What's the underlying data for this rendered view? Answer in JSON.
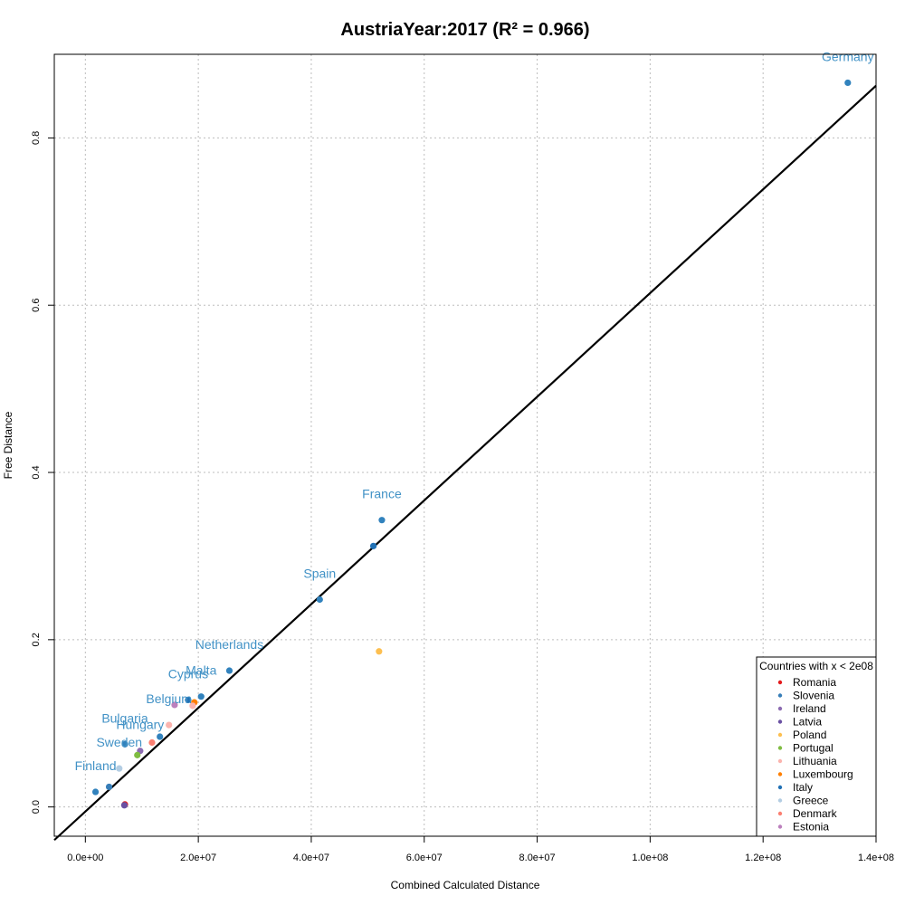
{
  "chart_data": {
    "type": "scatter",
    "title": "AustriaYear:2017 (R² = 0.966)",
    "xlabel": "Combined Calculated Distance",
    "ylabel": "Free Distance",
    "xlim": [
      -5500000,
      140000000
    ],
    "ylim": [
      -0.035,
      0.9
    ],
    "x_ticks": [
      0,
      20000000,
      40000000,
      60000000,
      80000000,
      100000000,
      120000000,
      140000000
    ],
    "x_tick_labels": [
      "0.0e+00",
      "2.0e+07",
      "4.0e+07",
      "6.0e+07",
      "8.0e+07",
      "1.0e+08",
      "1.2e+08",
      "1.4e+08"
    ],
    "y_ticks": [
      0.0,
      0.2,
      0.4,
      0.6,
      0.8
    ],
    "y_tick_labels": [
      "0.0",
      "0.2",
      "0.4",
      "0.6",
      "0.8"
    ],
    "grid": true,
    "regression_line": {
      "intercept": -0.0055,
      "slope": 6.2e-09,
      "color": "#000000"
    },
    "legend": {
      "title": "Countries with x < 2e08",
      "position": "bottom-right",
      "entries": [
        {
          "name": "Romania",
          "color": "#e41a1c"
        },
        {
          "name": "Slovenia",
          "color": "#377eb8"
        },
        {
          "name": "Ireland",
          "color": "#8c6bb1"
        },
        {
          "name": "Latvia",
          "color": "#6a51a3"
        },
        {
          "name": "Poland",
          "color": "#fdbf50"
        },
        {
          "name": "Portugal",
          "color": "#7fbc41"
        },
        {
          "name": "Lithuania",
          "color": "#fbb4ae"
        },
        {
          "name": "Luxembourg",
          "color": "#ff7f00"
        },
        {
          "name": "Italy",
          "color": "#2171b5"
        },
        {
          "name": "Greece",
          "color": "#b3cde3"
        },
        {
          "name": "Denmark",
          "color": "#fb8072"
        },
        {
          "name": "Estonia",
          "color": "#bc80bd"
        }
      ]
    },
    "points": [
      {
        "x": 135000000,
        "y": 0.866,
        "color": "#3182bd",
        "label": "Germany"
      },
      {
        "x": 52500000,
        "y": 0.343,
        "color": "#3182bd",
        "label": "France"
      },
      {
        "x": 51000000,
        "y": 0.312,
        "color": "#2171b5",
        "label": ""
      },
      {
        "x": 41500000,
        "y": 0.248,
        "color": "#3182bd",
        "label": "Spain"
      },
      {
        "x": 52000000,
        "y": 0.186,
        "color": "#fdbf50",
        "label": ""
      },
      {
        "x": 25500000,
        "y": 0.163,
        "color": "#3182bd",
        "label": "Netherlands"
      },
      {
        "x": 20500000,
        "y": 0.132,
        "color": "#3182bd",
        "label": "Malta"
      },
      {
        "x": 18200000,
        "y": 0.128,
        "color": "#2171b5",
        "label": "Cyprus"
      },
      {
        "x": 19300000,
        "y": 0.125,
        "color": "#ff7f00",
        "label": ""
      },
      {
        "x": 19000000,
        "y": 0.121,
        "color": "#fbb4ae",
        "label": ""
      },
      {
        "x": 15800000,
        "y": 0.122,
        "color": "#bc80bd",
        "label": ""
      },
      {
        "x": 14800000,
        "y": 0.098,
        "color": "#fbb4ae",
        "label": "Belgium"
      },
      {
        "x": 13200000,
        "y": 0.084,
        "color": "#3182bd",
        "label": ""
      },
      {
        "x": 11800000,
        "y": 0.077,
        "color": "#fb8072",
        "label": ""
      },
      {
        "x": 7000000,
        "y": 0.075,
        "color": "#3182bd",
        "label": "Bulgaria"
      },
      {
        "x": 9700000,
        "y": 0.067,
        "color": "#8c6bb1",
        "label": "Hungary"
      },
      {
        "x": 9200000,
        "y": 0.062,
        "color": "#7fbc41",
        "label": ""
      },
      {
        "x": 6000000,
        "y": 0.046,
        "color": "#b3cde3",
        "label": "Sweden"
      },
      {
        "x": 4200000,
        "y": 0.024,
        "color": "#377eb8",
        "label": ""
      },
      {
        "x": 1800000,
        "y": 0.018,
        "color": "#3182bd",
        "label": "Finland"
      },
      {
        "x": 7000000,
        "y": 0.003,
        "color": "#e41a1c",
        "label": ""
      },
      {
        "x": 6900000,
        "y": 0.002,
        "color": "#6a51a3",
        "label": ""
      }
    ]
  }
}
